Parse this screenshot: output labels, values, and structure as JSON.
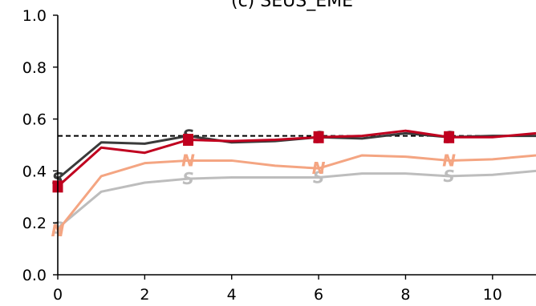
{
  "chart_data": {
    "type": "line",
    "title": "(c) SEUS_EME",
    "xlabel": "",
    "ylabel": "",
    "xlim": [
      0,
      11
    ],
    "ylim": [
      0.0,
      1.0
    ],
    "x_ticks": [
      0,
      2,
      4,
      6,
      8,
      10
    ],
    "x_tick_labels": [
      "0",
      "2",
      "4",
      "6",
      "8",
      "10"
    ],
    "y_ticks": [
      0.0,
      0.2,
      0.4,
      0.6,
      0.8,
      1.0
    ],
    "y_tick_labels": [
      "0.0",
      "0.2",
      "0.4",
      "0.6",
      "0.8",
      "1.0"
    ],
    "grid": false,
    "reference_line": {
      "y": 0.535,
      "style": "dashed",
      "color": "#000000"
    },
    "x": [
      0,
      1,
      2,
      3,
      4,
      5,
      6,
      7,
      8,
      9,
      10,
      11
    ],
    "series": [
      {
        "color": "#c0001f",
        "marker": "■",
        "marker_x": [
          0,
          3,
          6,
          9
        ],
        "values": [
          0.34,
          0.49,
          0.47,
          0.52,
          0.515,
          0.52,
          0.53,
          0.535,
          0.555,
          0.53,
          0.53,
          0.545
        ]
      },
      {
        "color": "#3a3a3a",
        "marker": "S",
        "marker_x": [
          0,
          3,
          6,
          9
        ],
        "values": [
          0.37,
          0.51,
          0.505,
          0.535,
          0.51,
          0.515,
          0.53,
          0.525,
          0.545,
          0.53,
          0.535,
          0.535
        ]
      },
      {
        "color": "#f4a582",
        "marker": "N",
        "marker_x": [
          0,
          3,
          6,
          9
        ],
        "values": [
          0.17,
          0.38,
          0.43,
          0.44,
          0.44,
          0.42,
          0.41,
          0.46,
          0.455,
          0.44,
          0.445,
          0.46
        ]
      },
      {
        "color": "#bdbdbd",
        "marker": "S",
        "marker_x": [
          0,
          3,
          6,
          9
        ],
        "values": [
          0.18,
          0.32,
          0.355,
          0.37,
          0.375,
          0.375,
          0.375,
          0.39,
          0.39,
          0.38,
          0.385,
          0.4
        ]
      }
    ]
  }
}
